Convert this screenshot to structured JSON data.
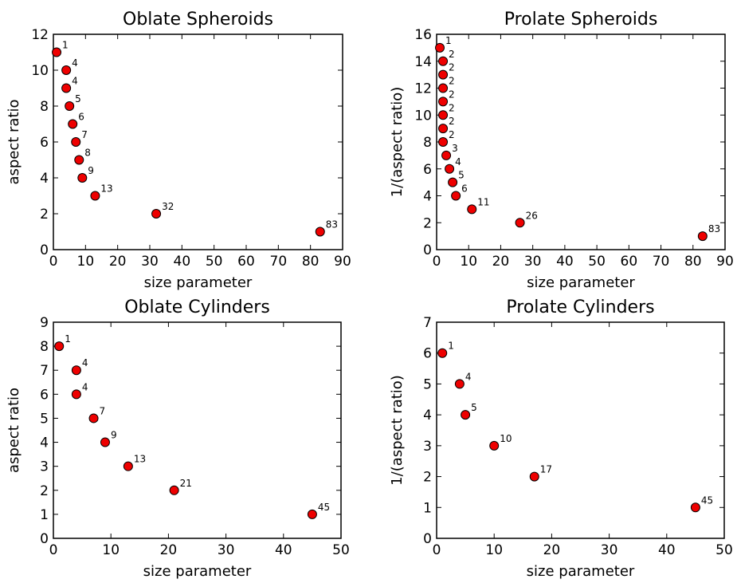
{
  "colors": {
    "marker": "#ee0000",
    "marker_edge": "#000000"
  },
  "chart_data": [
    {
      "type": "scatter",
      "title": "Oblate Spheroids",
      "xlabel": "size parameter",
      "ylabel": "aspect ratio",
      "xlim": [
        0,
        90
      ],
      "ylim": [
        0,
        12
      ],
      "xticks": [
        0,
        10,
        20,
        30,
        40,
        50,
        60,
        70,
        80,
        90
      ],
      "yticks": [
        0,
        2,
        4,
        6,
        8,
        10,
        12
      ],
      "points": [
        {
          "x": 1,
          "y": 11,
          "label": "1"
        },
        {
          "x": 4,
          "y": 10,
          "label": "4"
        },
        {
          "x": 4,
          "y": 9,
          "label": "4"
        },
        {
          "x": 5,
          "y": 8,
          "label": "5"
        },
        {
          "x": 6,
          "y": 7,
          "label": "6"
        },
        {
          "x": 7,
          "y": 6,
          "label": "7"
        },
        {
          "x": 8,
          "y": 5,
          "label": "8"
        },
        {
          "x": 9,
          "y": 4,
          "label": "9"
        },
        {
          "x": 13,
          "y": 3,
          "label": "13"
        },
        {
          "x": 32,
          "y": 2,
          "label": "32"
        },
        {
          "x": 83,
          "y": 1,
          "label": "83"
        }
      ]
    },
    {
      "type": "scatter",
      "title": "Prolate Spheroids",
      "xlabel": "size parameter",
      "ylabel": "1/(aspect ratio)",
      "xlim": [
        0,
        90
      ],
      "ylim": [
        0,
        16
      ],
      "xticks": [
        0,
        10,
        20,
        30,
        40,
        50,
        60,
        70,
        80,
        90
      ],
      "yticks": [
        0,
        2,
        4,
        6,
        8,
        10,
        12,
        14,
        16
      ],
      "points": [
        {
          "x": 1,
          "y": 15,
          "label": "1"
        },
        {
          "x": 2,
          "y": 14,
          "label": "2"
        },
        {
          "x": 2,
          "y": 13,
          "label": "2"
        },
        {
          "x": 2,
          "y": 12,
          "label": "2"
        },
        {
          "x": 2,
          "y": 11,
          "label": "2"
        },
        {
          "x": 2,
          "y": 10,
          "label": "2"
        },
        {
          "x": 2,
          "y": 9,
          "label": "2"
        },
        {
          "x": 2,
          "y": 8,
          "label": "2"
        },
        {
          "x": 3,
          "y": 7,
          "label": "3"
        },
        {
          "x": 4,
          "y": 6,
          "label": "4"
        },
        {
          "x": 5,
          "y": 5,
          "label": "5"
        },
        {
          "x": 6,
          "y": 4,
          "label": "6"
        },
        {
          "x": 11,
          "y": 3,
          "label": "11"
        },
        {
          "x": 26,
          "y": 2,
          "label": "26"
        },
        {
          "x": 83,
          "y": 1,
          "label": "83"
        }
      ]
    },
    {
      "type": "scatter",
      "title": "Oblate Cylinders",
      "xlabel": "size parameter",
      "ylabel": "aspect ratio",
      "xlim": [
        0,
        50
      ],
      "ylim": [
        0,
        9
      ],
      "xticks": [
        0,
        10,
        20,
        30,
        40,
        50
      ],
      "yticks": [
        0,
        1,
        2,
        3,
        4,
        5,
        6,
        7,
        8,
        9
      ],
      "points": [
        {
          "x": 1,
          "y": 8,
          "label": "1"
        },
        {
          "x": 4,
          "y": 7,
          "label": "4"
        },
        {
          "x": 4,
          "y": 6,
          "label": "4"
        },
        {
          "x": 7,
          "y": 5,
          "label": "7"
        },
        {
          "x": 9,
          "y": 4,
          "label": "9"
        },
        {
          "x": 13,
          "y": 3,
          "label": "13"
        },
        {
          "x": 21,
          "y": 2,
          "label": "21"
        },
        {
          "x": 45,
          "y": 1,
          "label": "45"
        }
      ]
    },
    {
      "type": "scatter",
      "title": "Prolate Cylinders",
      "xlabel": "size parameter",
      "ylabel": "1/(aspect ratio)",
      "xlim": [
        0,
        50
      ],
      "ylim": [
        0,
        7
      ],
      "xticks": [
        0,
        10,
        20,
        30,
        40,
        50
      ],
      "yticks": [
        0,
        1,
        2,
        3,
        4,
        5,
        6,
        7
      ],
      "points": [
        {
          "x": 1,
          "y": 6,
          "label": "1"
        },
        {
          "x": 4,
          "y": 5,
          "label": "4"
        },
        {
          "x": 5,
          "y": 4,
          "label": "5"
        },
        {
          "x": 10,
          "y": 3,
          "label": "10"
        },
        {
          "x": 17,
          "y": 2,
          "label": "17"
        },
        {
          "x": 45,
          "y": 1,
          "label": "45"
        }
      ]
    }
  ]
}
